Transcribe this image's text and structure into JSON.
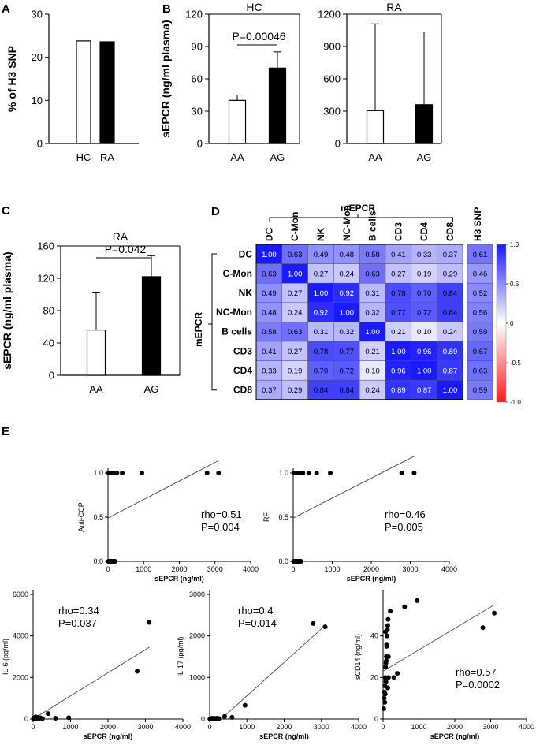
{
  "panel_labels": [
    "A",
    "B",
    "C",
    "D",
    "E"
  ],
  "chart_data": [
    {
      "id": "A",
      "type": "bar",
      "title": "",
      "ylabel": "% of H3 SNP",
      "xlabel": "",
      "ylim": [
        0,
        30
      ],
      "yticks": [
        0,
        10,
        20,
        30
      ],
      "categories": [
        "HC",
        "RA"
      ],
      "values": [
        23.8,
        23.6
      ],
      "colors": [
        "#ffffff",
        "#000000"
      ]
    },
    {
      "id": "B-HC",
      "type": "bar",
      "title": "HC",
      "ylabel": "sEPCR (ng/ml plasma)",
      "xlabel": "",
      "ylim": [
        0,
        120
      ],
      "yticks": [
        0,
        30,
        60,
        90,
        120
      ],
      "categories": [
        "AA",
        "AG"
      ],
      "values": [
        40,
        70
      ],
      "errors": [
        5,
        15
      ],
      "colors": [
        "#ffffff",
        "#000000"
      ],
      "annotation": "P=0.00046"
    },
    {
      "id": "B-RA",
      "type": "bar",
      "title": "RA",
      "ylabel": "",
      "xlabel": "",
      "ylim": [
        0,
        1200
      ],
      "yticks": [
        0,
        300,
        600,
        900,
        1200
      ],
      "categories": [
        "AA",
        "AG"
      ],
      "values": [
        305,
        360
      ],
      "errors": [
        805,
        675
      ],
      "colors": [
        "#ffffff",
        "#000000"
      ]
    },
    {
      "id": "C",
      "type": "bar",
      "title": "RA",
      "ylabel": "sEPCR (ng/ml plasma)",
      "xlabel": "",
      "ylim": [
        0,
        160
      ],
      "yticks": [
        0,
        40,
        80,
        120,
        160
      ],
      "categories": [
        "AA",
        "AG"
      ],
      "values": [
        56,
        122
      ],
      "errors": [
        46,
        26
      ],
      "colors": [
        "#ffffff",
        "#000000"
      ],
      "annotation": "P=0.042"
    },
    {
      "id": "D",
      "type": "heatmap",
      "group_label_top": "mEPCR",
      "group_label_left": "mEPCR",
      "columns": [
        "DC",
        "C-Mon",
        "NK",
        "NC-Mon",
        "B cells",
        "CD3",
        "CD4",
        "CD8"
      ],
      "rows": [
        "DC",
        "C-Mon",
        "NK",
        "NC-Mon",
        "B cells",
        "CD3",
        "CD4",
        "CD8"
      ],
      "matrix": [
        [
          "1.00",
          "0.63",
          "0.49",
          "0.48",
          "0.58",
          "0.41",
          "0.33",
          "0.37"
        ],
        [
          "0.63",
          "1.00",
          "0.27",
          "0.24",
          "0.63",
          "0.27",
          "0.19",
          "0.29"
        ],
        [
          "0.49",
          "0.27",
          "1.00",
          "0.92",
          "0.31",
          "0.78",
          "0.70",
          "0.84"
        ],
        [
          "0.48",
          "0.24",
          "0.92",
          "1.00",
          "0.32",
          "0.77",
          "0.72",
          "0.84"
        ],
        [
          "0.58",
          "0.63",
          "0.31",
          "0.32",
          "1.00",
          "0.21",
          "0.10",
          "0.24"
        ],
        [
          "0.41",
          "0.27",
          "0.78",
          "0.77",
          "0.21",
          "1.00",
          "0.96",
          "0.89"
        ],
        [
          "0.33",
          "0.19",
          "0.70",
          "0.72",
          "0.10",
          "0.96",
          "1.00",
          "0.87"
        ],
        [
          "0.37",
          "0.29",
          "0.84",
          "0.84",
          "0.24",
          "0.89",
          "0.87",
          "1.00"
        ]
      ],
      "extra_column_label": "H3 SNP",
      "extra_column": [
        "0.61",
        "0.46",
        "0.52",
        "0.56",
        "0.59",
        "0.67",
        "0.63",
        "0.59"
      ],
      "colorbar_ticks": [
        "1.0",
        "0.5",
        "0",
        "-0.5",
        "-1.0"
      ],
      "colorbar_colors": {
        "high": "#1a1aff",
        "mid": "#ffffff",
        "low": "#ff1a1a"
      }
    },
    {
      "id": "E-antiCCP",
      "type": "scatter",
      "xlabel": "sEPCR (ng/ml)",
      "ylabel": "Anti-CCP",
      "xlim": [
        0,
        4000
      ],
      "xticks": [
        0,
        1000,
        2000,
        3000,
        4000
      ],
      "ylim": [
        0,
        1.0
      ],
      "yticks": [
        "0.0",
        "0.5",
        "1.0"
      ],
      "x": [
        20,
        40,
        60,
        80,
        100,
        120,
        150,
        180,
        250,
        400,
        950,
        2780,
        3100,
        10,
        30,
        50,
        70,
        90,
        110,
        140,
        170,
        200
      ],
      "y": [
        1,
        1,
        1,
        1,
        1,
        1,
        1,
        1,
        1,
        1,
        1,
        1,
        1,
        0,
        0,
        0,
        0,
        0,
        0,
        0,
        0,
        0
      ],
      "trend": {
        "x": [
          0,
          3100
        ],
        "y": [
          0.49,
          1.14
        ]
      },
      "stats": [
        "rho=0.51",
        "P=0.004"
      ]
    },
    {
      "id": "E-RF",
      "type": "scatter",
      "xlabel": "sEPCR (ng/ml)",
      "ylabel": "RF",
      "xlim": [
        0,
        4000
      ],
      "xticks": [
        0,
        1000,
        2000,
        3000,
        4000
      ],
      "ylim": [
        0,
        1.0
      ],
      "yticks": [
        "0.0",
        "0.5",
        "1.0"
      ],
      "x": [
        20,
        40,
        60,
        80,
        100,
        120,
        150,
        180,
        250,
        400,
        600,
        950,
        2780,
        3100,
        10,
        30,
        50,
        70,
        90,
        110,
        140,
        170,
        200
      ],
      "y": [
        1,
        1,
        1,
        1,
        1,
        1,
        1,
        1,
        1,
        1,
        1,
        1,
        1,
        1,
        0,
        0,
        0,
        0,
        0,
        0,
        0,
        0,
        0
      ],
      "trend": {
        "x": [
          0,
          3100
        ],
        "y": [
          0.49,
          1.19
        ]
      },
      "stats": [
        "rho=0.46",
        "P=0.005"
      ]
    },
    {
      "id": "E-IL6",
      "type": "scatter",
      "xlabel": "sEPCR (ng/ml)",
      "ylabel": "IL-6 (pg/ml)",
      "xlim": [
        0,
        4000
      ],
      "xticks": [
        0,
        1000,
        2000,
        3000,
        4000
      ],
      "ylim": [
        0,
        6000
      ],
      "yticks": [
        0,
        2000,
        4000,
        6000
      ],
      "x": [
        10,
        20,
        30,
        50,
        70,
        90,
        110,
        130,
        160,
        200,
        250,
        400,
        600,
        950,
        2780,
        3100
      ],
      "y": [
        10,
        50,
        30,
        20,
        100,
        60,
        40,
        80,
        30,
        50,
        20,
        260,
        40,
        60,
        2300,
        4650
      ],
      "trend": {
        "x": [
          0,
          3100
        ],
        "y": [
          0,
          3450
        ]
      },
      "stats": [
        "rho=0.34",
        "P=0.037"
      ]
    },
    {
      "id": "E-IL17",
      "type": "scatter",
      "xlabel": "sEPCR (ng/ml)",
      "ylabel": "IL-17 (pg/ml)",
      "xlim": [
        0,
        4000
      ],
      "xticks": [
        0,
        1000,
        2000,
        3000,
        4000
      ],
      "ylim": [
        0,
        3000
      ],
      "yticks": [
        0,
        1000,
        2000,
        3000
      ],
      "x": [
        10,
        20,
        30,
        50,
        70,
        90,
        110,
        130,
        160,
        200,
        250,
        400,
        600,
        950,
        2780,
        3100
      ],
      "y": [
        5,
        10,
        10,
        5,
        20,
        10,
        10,
        15,
        10,
        20,
        10,
        60,
        40,
        330,
        2300,
        2220
      ],
      "trend": {
        "x": [
          0,
          3100
        ],
        "y": [
          -250,
          2250
        ]
      },
      "stats": [
        "rho=0.4",
        "P=0.014"
      ]
    },
    {
      "id": "E-sCD14",
      "type": "scatter",
      "xlabel": "sEPCR (ng/ml)",
      "ylabel": "sCD14 (ng/ml)",
      "xlim": [
        0,
        4000
      ],
      "xticks": [
        0,
        1000,
        2000,
        3000,
        4000
      ],
      "ylim": [
        0,
        60
      ],
      "yticks": [
        0,
        20,
        40
      ],
      "x": [
        20,
        30,
        40,
        50,
        60,
        70,
        80,
        90,
        100,
        110,
        120,
        130,
        140,
        150,
        60,
        80,
        100,
        70,
        90,
        50,
        130,
        200,
        150,
        300,
        400,
        600,
        950,
        2780,
        3100
      ],
      "y": [
        5,
        10,
        13,
        16,
        20,
        25,
        27,
        30,
        36,
        40,
        43,
        45,
        48,
        20,
        12,
        18,
        35,
        42,
        28,
        8,
        15,
        52,
        30,
        20,
        22,
        54,
        57,
        44,
        51
      ],
      "trend": {
        "x": [
          0,
          3100
        ],
        "y": [
          23,
          55
        ]
      },
      "stats": [
        "rho=0.57",
        "P=0.0002"
      ]
    }
  ]
}
